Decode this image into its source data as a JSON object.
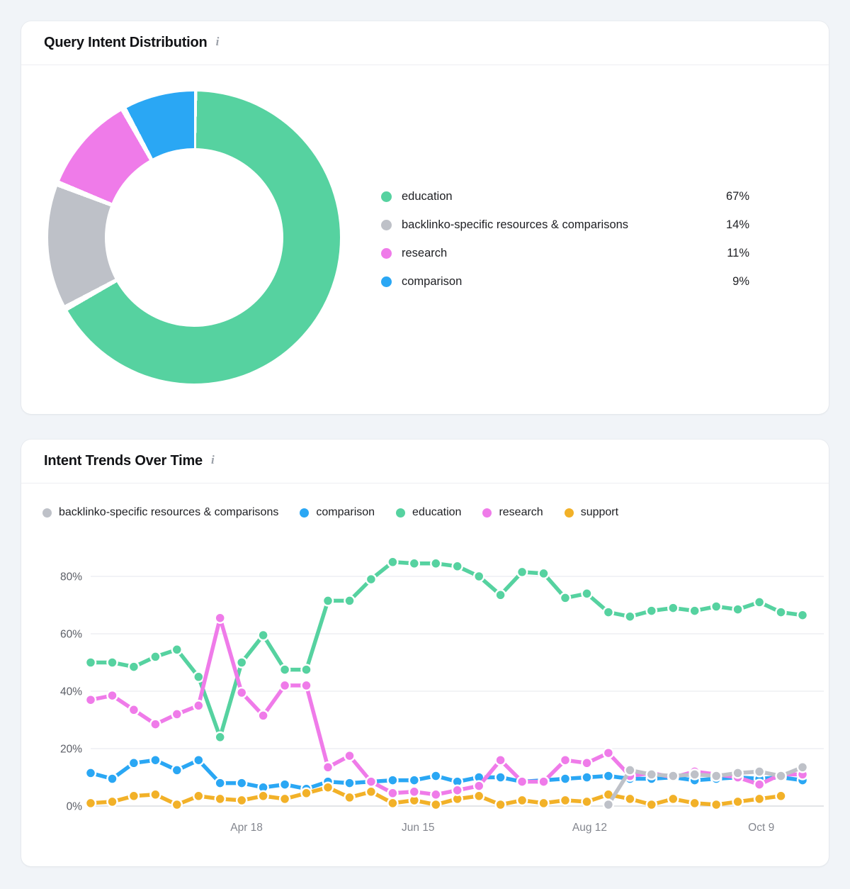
{
  "card1": {
    "title": "Query Intent Distribution",
    "info_icon": "i",
    "chart_data": {
      "type": "pie",
      "donut": true,
      "value_suffix": "%",
      "segments": [
        {
          "label": "education",
          "value": 67,
          "color": "#56D2A0"
        },
        {
          "label": "backlinko-specific resources & comparisons",
          "value": 14,
          "color": "#BEC1C8"
        },
        {
          "label": "research",
          "value": 11,
          "color": "#EF7BE9"
        },
        {
          "label": "comparison",
          "value": 9,
          "color": "#2AA7F4"
        }
      ]
    }
  },
  "card2": {
    "title": "Intent Trends Over Time",
    "info_icon": "i",
    "chart_data": {
      "type": "line",
      "grid": true,
      "legend_position": "top",
      "ylim": [
        0,
        88
      ],
      "y_axis": {
        "ticks": [
          {
            "label": "0%",
            "value": 0
          },
          {
            "label": "20%",
            "value": 20
          },
          {
            "label": "40%",
            "value": 40
          },
          {
            "label": "60%",
            "value": 60
          },
          {
            "label": "80%",
            "value": 80
          }
        ]
      },
      "x_axis": {
        "ticks": [
          {
            "label": "Apr 18",
            "pos": 0.219
          },
          {
            "label": "Jun 15",
            "pos": 0.46
          },
          {
            "label": "Aug 12",
            "pos": 0.701
          },
          {
            "label": "Oct 9",
            "pos": 0.942
          }
        ]
      },
      "series": [
        {
          "name": "backlinko-specific resources & comparisons",
          "color": "#BEC1C8",
          "values": [
            null,
            null,
            null,
            null,
            null,
            null,
            null,
            null,
            null,
            null,
            null,
            null,
            null,
            null,
            null,
            null,
            null,
            null,
            null,
            null,
            null,
            null,
            null,
            null,
            0.5,
            12.5,
            11,
            10.5,
            11,
            10.5,
            11.5,
            12,
            10.5,
            13.5
          ]
        },
        {
          "name": "comparison",
          "color": "#2AA7F4",
          "values": [
            11.5,
            9.5,
            15,
            16,
            12.5,
            16,
            8,
            8,
            6.5,
            7.5,
            6,
            8.5,
            8,
            8.5,
            9,
            9,
            10.5,
            8.5,
            10,
            10,
            8.5,
            9,
            9.5,
            10,
            10.5,
            9.5,
            9.5,
            10,
            9,
            9.5,
            10,
            9.5,
            10,
            9
          ]
        },
        {
          "name": "education",
          "color": "#56D2A0",
          "values": [
            50,
            50,
            48.5,
            52,
            54.5,
            45,
            24,
            50,
            59.5,
            47.5,
            47.5,
            71.5,
            71.5,
            79,
            85,
            84.5,
            84.5,
            83.5,
            80,
            73.5,
            81.5,
            81,
            72.5,
            74,
            67.5,
            66,
            68,
            69,
            68,
            69.5,
            68.5,
            71,
            67.5,
            66.5
          ]
        },
        {
          "name": "research",
          "color": "#EF7BE9",
          "values": [
            37,
            38.5,
            33.5,
            28.5,
            32,
            35,
            65.5,
            39.5,
            31.5,
            42,
            42,
            13.5,
            17.5,
            8.5,
            4.5,
            5,
            4,
            5.5,
            7,
            16,
            8.5,
            8.5,
            16,
            15,
            18.5,
            10.5,
            11.5,
            10,
            12,
            11,
            10,
            7.5,
            11,
            11
          ]
        },
        {
          "name": "support",
          "color": "#F2B128",
          "values": [
            1,
            1.5,
            3.5,
            4,
            0.5,
            3.5,
            2.5,
            2,
            3.5,
            2.5,
            4.5,
            6.5,
            3,
            5,
            1,
            2,
            0.5,
            2.5,
            3.5,
            0.5,
            2,
            1,
            2,
            1.5,
            4,
            2.5,
            0.5,
            2.5,
            1,
            0.5,
            1.5,
            2.5,
            3.5,
            null
          ]
        }
      ],
      "draw_order": [
        "education",
        "comparison",
        "support",
        "research",
        "backlinko-specific resources & comparisons"
      ],
      "grid_color": "#EAECF0",
      "axis_line_color": "#D2D5DA",
      "y_label_color": "#5B5E66",
      "x_label_color": "#83868E"
    }
  }
}
